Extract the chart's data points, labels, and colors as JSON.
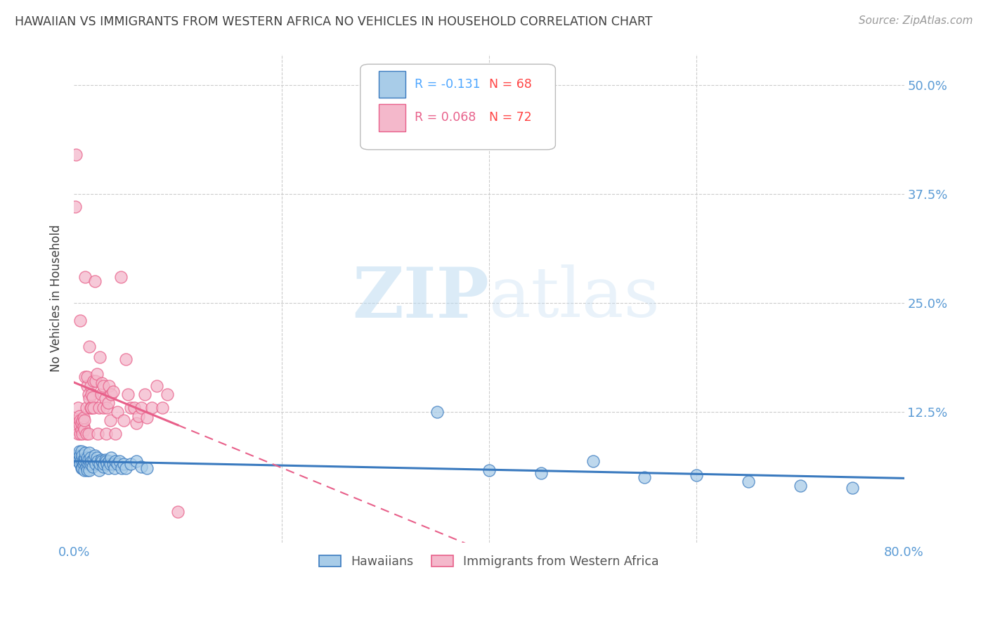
{
  "title": "HAWAIIAN VS IMMIGRANTS FROM WESTERN AFRICA NO VEHICLES IN HOUSEHOLD CORRELATION CHART",
  "source": "Source: ZipAtlas.com",
  "ylabel": "No Vehicles in Household",
  "xlim": [
    0.0,
    0.8
  ],
  "ylim": [
    -0.025,
    0.535
  ],
  "yticks": [
    0.0,
    0.125,
    0.25,
    0.375,
    0.5
  ],
  "ytick_labels": [
    "",
    "12.5%",
    "25.0%",
    "37.5%",
    "50.0%"
  ],
  "xticks": [
    0.0,
    0.8
  ],
  "xtick_labels": [
    "0.0%",
    "80.0%"
  ],
  "hawaiians_R": -0.131,
  "hawaiians_N": 68,
  "immigrants_R": 0.068,
  "immigrants_N": 72,
  "hawaiians_color": "#a8cce8",
  "immigrants_color": "#f4b8cb",
  "trend_hawaiians_color": "#3a7abf",
  "trend_immigrants_color": "#e8608a",
  "trend_immigrants_dashed_color": "#e8608a",
  "background_color": "#ffffff",
  "grid_color": "#cccccc",
  "title_color": "#404040",
  "ylabel_color": "#404040",
  "tick_label_color": "#5b9bd5",
  "watermark_color": "#d0e8f8",
  "hawaiians_x": [
    0.003,
    0.004,
    0.005,
    0.005,
    0.006,
    0.006,
    0.007,
    0.007,
    0.007,
    0.008,
    0.008,
    0.009,
    0.009,
    0.01,
    0.01,
    0.011,
    0.011,
    0.012,
    0.012,
    0.013,
    0.013,
    0.014,
    0.014,
    0.015,
    0.015,
    0.016,
    0.016,
    0.017,
    0.018,
    0.019,
    0.02,
    0.021,
    0.022,
    0.023,
    0.024,
    0.025,
    0.026,
    0.027,
    0.028,
    0.029,
    0.03,
    0.031,
    0.032,
    0.033,
    0.034,
    0.035,
    0.036,
    0.038,
    0.039,
    0.04,
    0.042,
    0.044,
    0.046,
    0.048,
    0.05,
    0.055,
    0.06,
    0.065,
    0.07,
    0.35,
    0.4,
    0.45,
    0.5,
    0.55,
    0.6,
    0.65,
    0.7,
    0.75
  ],
  "hawaiians_y": [
    0.075,
    0.068,
    0.07,
    0.08,
    0.065,
    0.075,
    0.06,
    0.07,
    0.08,
    0.06,
    0.075,
    0.065,
    0.07,
    0.058,
    0.068,
    0.072,
    0.078,
    0.062,
    0.068,
    0.058,
    0.072,
    0.065,
    0.07,
    0.078,
    0.058,
    0.065,
    0.072,
    0.068,
    0.062,
    0.07,
    0.075,
    0.065,
    0.072,
    0.068,
    0.058,
    0.065,
    0.07,
    0.068,
    0.062,
    0.065,
    0.07,
    0.068,
    0.065,
    0.06,
    0.068,
    0.065,
    0.072,
    0.065,
    0.06,
    0.068,
    0.065,
    0.068,
    0.06,
    0.065,
    0.06,
    0.065,
    0.068,
    0.062,
    0.06,
    0.125,
    0.058,
    0.055,
    0.068,
    0.05,
    0.052,
    0.045,
    0.04,
    0.038
  ],
  "immigrants_x": [
    0.001,
    0.002,
    0.003,
    0.003,
    0.004,
    0.004,
    0.005,
    0.005,
    0.006,
    0.006,
    0.006,
    0.007,
    0.007,
    0.008,
    0.008,
    0.009,
    0.009,
    0.01,
    0.01,
    0.011,
    0.011,
    0.012,
    0.012,
    0.013,
    0.013,
    0.014,
    0.014,
    0.015,
    0.015,
    0.016,
    0.016,
    0.017,
    0.017,
    0.018,
    0.019,
    0.019,
    0.02,
    0.021,
    0.022,
    0.023,
    0.024,
    0.025,
    0.026,
    0.027,
    0.028,
    0.028,
    0.03,
    0.031,
    0.032,
    0.033,
    0.034,
    0.035,
    0.036,
    0.038,
    0.04,
    0.042,
    0.045,
    0.048,
    0.05,
    0.052,
    0.055,
    0.058,
    0.06,
    0.062,
    0.065,
    0.068,
    0.07,
    0.075,
    0.08,
    0.085,
    0.09,
    0.1
  ],
  "immigrants_y": [
    0.36,
    0.42,
    0.105,
    0.115,
    0.1,
    0.13,
    0.11,
    0.12,
    0.23,
    0.1,
    0.115,
    0.105,
    0.112,
    0.1,
    0.115,
    0.108,
    0.118,
    0.105,
    0.115,
    0.28,
    0.165,
    0.13,
    0.1,
    0.155,
    0.165,
    0.1,
    0.145,
    0.14,
    0.2,
    0.155,
    0.13,
    0.145,
    0.13,
    0.142,
    0.13,
    0.16,
    0.275,
    0.16,
    0.168,
    0.1,
    0.13,
    0.188,
    0.145,
    0.158,
    0.155,
    0.13,
    0.14,
    0.1,
    0.13,
    0.135,
    0.155,
    0.115,
    0.145,
    0.148,
    0.1,
    0.125,
    0.28,
    0.115,
    0.185,
    0.145,
    0.13,
    0.13,
    0.112,
    0.12,
    0.13,
    0.145,
    0.118,
    0.13,
    0.155,
    0.13,
    0.145,
    0.01
  ]
}
